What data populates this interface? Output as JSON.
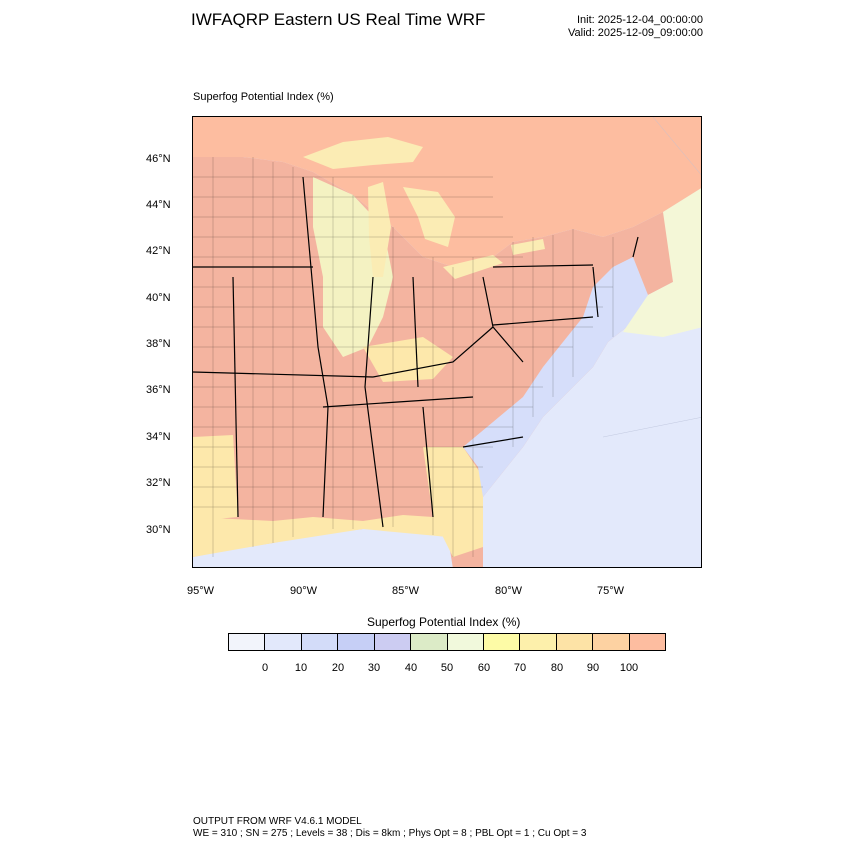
{
  "header": {
    "title": "IWFAQRP Eastern US Real Time WRF",
    "init": "Init: 2025-12-04_00:00:00",
    "valid": "Valid: 2025-12-09_09:00:00"
  },
  "map": {
    "subtitle": "Superfog Potential Index   (%)",
    "lat_labels": [
      "46°N",
      "44°N",
      "42°N",
      "40°N",
      "38°N",
      "36°N",
      "34°N",
      "32°N",
      "30°N"
    ],
    "lon_labels": [
      "95°W",
      "90°W",
      "85°W",
      "80°W",
      "75°W"
    ]
  },
  "legend": {
    "title": "Superfog Potential Index  (%)",
    "colors": [
      "#f2f4fb",
      "#e2e8fb",
      "#d3dcf9",
      "#c6cff6",
      "#ccccf2",
      "#dcebc7",
      "#f1f9dc",
      "#fdfba6",
      "#fdf0ab",
      "#fde3a6",
      "#fdd2a2",
      "#fdbda0"
    ],
    "ticks": [
      "0",
      "10",
      "20",
      "30",
      "40",
      "50",
      "60",
      "70",
      "80",
      "90",
      "100"
    ]
  },
  "colors": {
    "land_high": "#f4b4a0",
    "land_mid": "#fde8ab",
    "land_light": "#f4f7d7",
    "coastal_low": "#d6defa",
    "ocean": "#e3e9fb",
    "lake": "#fbecb4",
    "canada": "#fdbda0"
  },
  "footer": {
    "line1": "OUTPUT FROM WRF V4.6.1 MODEL",
    "line2": "WE = 310 ; SN = 275 ; Levels = 38 ; Dis = 8km ; Phys Opt = 8 ; PBL Opt = 1 ; Cu Opt = 3"
  }
}
